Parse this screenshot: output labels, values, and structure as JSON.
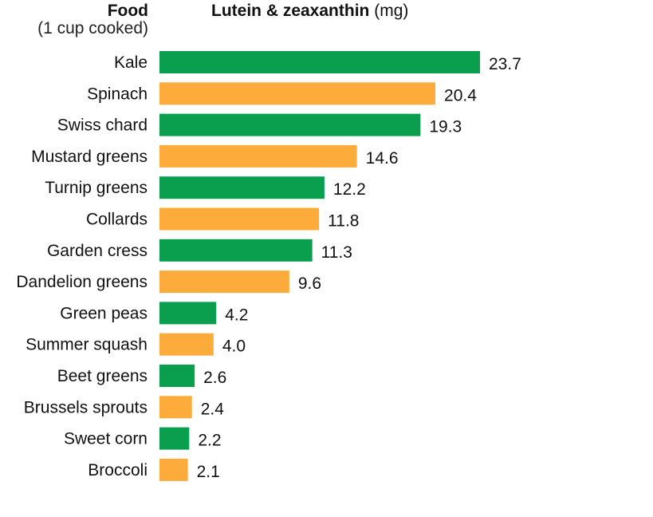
{
  "header": {
    "food_title": "Food",
    "food_subtitle": "(1 cup cooked)",
    "metric_title": "Lutein & zeaxanthin",
    "metric_unit": "(mg)"
  },
  "colors": {
    "green": "#0a9e4f",
    "orange": "#fdab3a"
  },
  "chart_data": {
    "type": "bar",
    "orientation": "horizontal",
    "categories": [
      "Kale",
      "Spinach",
      "Swiss chard",
      "Mustard greens",
      "Turnip greens",
      "Collards",
      "Garden cress",
      "Dandelion greens",
      "Green peas",
      "Summer squash",
      "Beet greens",
      "Brussels sprouts",
      "Sweet corn",
      "Broccoli"
    ],
    "values": [
      23.7,
      20.4,
      19.3,
      14.6,
      12.2,
      11.8,
      11.3,
      9.6,
      4.2,
      4.0,
      2.6,
      2.4,
      2.2,
      2.1
    ],
    "value_labels": [
      "23.7",
      "20.4",
      "19.3",
      "14.6",
      "12.2",
      "11.8",
      "11.3",
      "9.6",
      "4.2",
      "4.0",
      "2.6",
      "2.4",
      "2.2",
      "2.1"
    ],
    "bar_colors": [
      "green",
      "orange",
      "green",
      "orange",
      "green",
      "orange",
      "green",
      "orange",
      "green",
      "orange",
      "green",
      "orange",
      "green",
      "orange"
    ],
    "xlim": [
      0,
      23.7
    ],
    "grid": false,
    "legend": "none"
  }
}
